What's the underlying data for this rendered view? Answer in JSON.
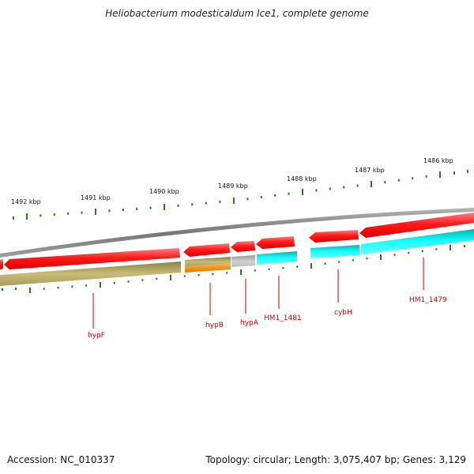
{
  "title": "Heliobacterium modesticaldum Ice1, complete genome",
  "accession": "Accession: NC_010337",
  "summary": "Topology: circular; Length: 3,075,407 bp; Genes: 3,129",
  "colors": {
    "backbone": "#8c8c8c",
    "forward_gene": "#ff1a1a",
    "reverse_cds_olive": "#bfb36a",
    "reverse_cds_cyan": "#19ffff",
    "reverse_cds_gray": "#c8c8c8",
    "reverse_cds_orange": "#ff9a1a",
    "tick": "#2a7a1a",
    "label": "#cc0000"
  },
  "scale_labels": [
    "1492 kbp",
    "1491 kbp",
    "1490 kbp",
    "1489 kbp",
    "1488 kbp",
    "1487 kbp",
    "1486 kbp"
  ],
  "gene_labels": [
    {
      "name": "hypF"
    },
    {
      "name": "hypB"
    },
    {
      "name": "hypA"
    },
    {
      "name": "HM1_1481"
    },
    {
      "name": "cybH"
    },
    {
      "name": "HM1_1479"
    }
  ]
}
